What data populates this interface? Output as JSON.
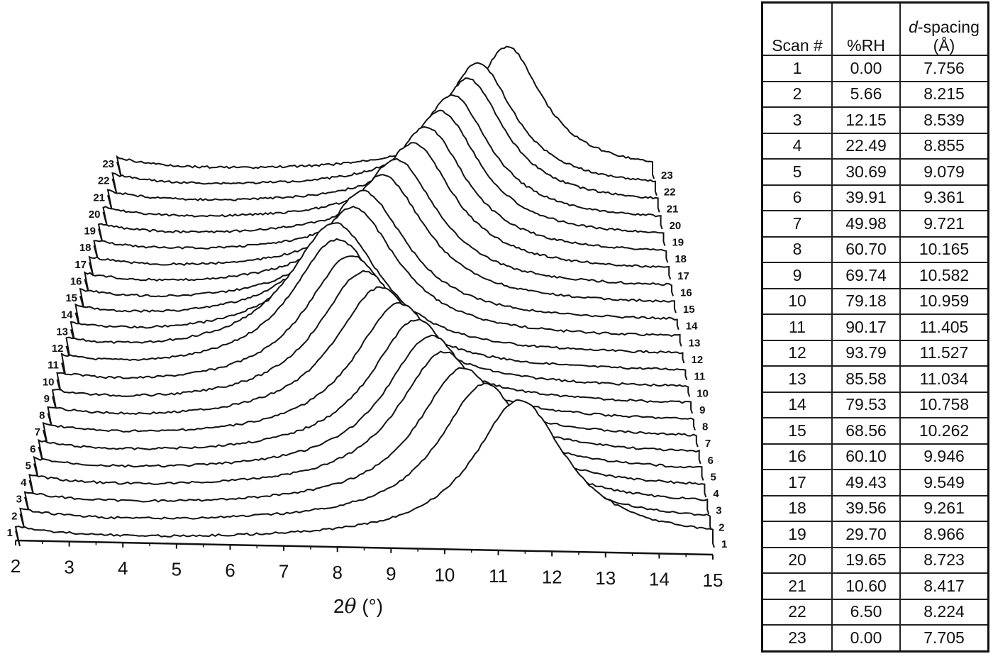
{
  "chart_data": {
    "type": "line",
    "subtype": "waterfall (stacked offset XRD patterns)",
    "title": "",
    "xlabel": "2θ (°)",
    "ylabel": "",
    "xlim": [
      2,
      15
    ],
    "x_ticks": [
      2,
      3,
      4,
      5,
      6,
      7,
      8,
      9,
      10,
      11,
      12,
      13,
      14,
      15
    ],
    "grid": false,
    "legend": "none; each trace labelled at both ends with scan number (1–23)",
    "series_labels": [
      "1",
      "2",
      "3",
      "4",
      "5",
      "6",
      "7",
      "8",
      "9",
      "10",
      "11",
      "12",
      "13",
      "14",
      "15",
      "16",
      "17",
      "18",
      "19",
      "20",
      "21",
      "22",
      "23"
    ],
    "peak_2theta_deg_from_d_spacing": [
      11.4,
      10.76,
      10.35,
      9.98,
      9.73,
      9.44,
      9.09,
      8.69,
      8.35,
      8.06,
      7.75,
      7.66,
      8.01,
      8.21,
      8.61,
      8.88,
      9.25,
      9.54,
      9.86,
      10.13,
      10.5,
      10.75,
      11.47
    ]
  },
  "axis": {
    "ticks": [
      "2",
      "3",
      "4",
      "5",
      "6",
      "7",
      "8",
      "9",
      "10",
      "11",
      "12",
      "13",
      "14",
      "15"
    ],
    "xlabel_prefix": "2",
    "xlabel_symbol": "θ",
    "xlabel_unit": " (°)"
  },
  "table": {
    "headers": [
      "Scan #",
      "%RH",
      "d-spacing (Å)"
    ],
    "header_d_italic": "d",
    "header_d_rest": "-spacing",
    "header_d_unit": "(Å)",
    "rows": [
      [
        "1",
        "0.00",
        "7.756"
      ],
      [
        "2",
        "5.66",
        "8.215"
      ],
      [
        "3",
        "12.15",
        "8.539"
      ],
      [
        "4",
        "22.49",
        "8.855"
      ],
      [
        "5",
        "30.69",
        "9.079"
      ],
      [
        "6",
        "39.91",
        "9.361"
      ],
      [
        "7",
        "49.98",
        "9.721"
      ],
      [
        "8",
        "60.70",
        "10.165"
      ],
      [
        "9",
        "69.74",
        "10.582"
      ],
      [
        "10",
        "79.18",
        "10.959"
      ],
      [
        "11",
        "90.17",
        "11.405"
      ],
      [
        "12",
        "93.79",
        "11.527"
      ],
      [
        "13",
        "85.58",
        "11.034"
      ],
      [
        "14",
        "79.53",
        "10.758"
      ],
      [
        "15",
        "68.56",
        "10.262"
      ],
      [
        "16",
        "60.10",
        "9.946"
      ],
      [
        "17",
        "49.43",
        "9.549"
      ],
      [
        "18",
        "39.56",
        "9.261"
      ],
      [
        "19",
        "29.70",
        "8.966"
      ],
      [
        "20",
        "19.65",
        "8.723"
      ],
      [
        "21",
        "10.60",
        "8.417"
      ],
      [
        "22",
        "6.50",
        "8.224"
      ],
      [
        "23",
        "0.00",
        "7.705"
      ]
    ]
  },
  "colors": {
    "line": "#111111",
    "background": "#ffffff"
  }
}
